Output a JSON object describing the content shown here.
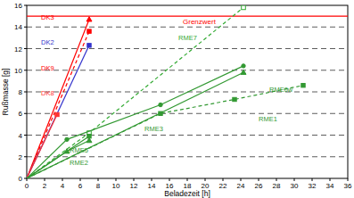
{
  "chart_data": {
    "type": "line",
    "x_label": "Beladezeit [h]",
    "y_label": "Rußmasse [g]",
    "xlim": [
      0,
      36
    ],
    "ylim": [
      0,
      16
    ],
    "xticks": [
      0,
      2,
      4,
      6,
      8,
      10,
      12,
      14,
      16,
      18,
      20,
      22,
      24,
      26,
      28,
      30,
      32,
      34,
      36
    ],
    "yticks": [
      0,
      2,
      4,
      6,
      8,
      10,
      12,
      14,
      16
    ],
    "grid": true,
    "reference_lines": [
      {
        "label": "Grenzwert",
        "value": 15,
        "color": "#ff0000"
      }
    ],
    "series": [
      {
        "name": "DK3",
        "color": "#ff0000",
        "x": [
          0,
          7
        ],
        "values": [
          0,
          14.7
        ],
        "marker": "triangle",
        "line_style": "solid"
      },
      {
        "name": "DK9",
        "color": "#ff0000",
        "x": [
          0,
          7
        ],
        "values": [
          0,
          13.6
        ],
        "marker": "square",
        "line_style": "dashed"
      },
      {
        "name": "DK2",
        "color": "#3333cc",
        "x": [
          0,
          7
        ],
        "values": [
          0,
          12.3
        ],
        "marker": "square",
        "line_style": "solid"
      },
      {
        "name": "DK8",
        "color": "#ff3333",
        "x": [
          0,
          3.4
        ],
        "values": [
          0,
          5.9
        ],
        "marker": "square",
        "line_style": "solid"
      },
      {
        "name": "RME7",
        "color": "#33aa33",
        "x": [
          0,
          7,
          24.3
        ],
        "values": [
          0,
          4.2,
          15.8
        ],
        "marker": "square-open",
        "line_style": "dashed"
      },
      {
        "name": "RME0w",
        "color": "#339933",
        "x": [
          0,
          24.3
        ],
        "values": [
          0,
          9.8
        ],
        "marker": "triangle",
        "line_style": "solid"
      },
      {
        "name": "RME3",
        "color": "#339933",
        "x": [
          0,
          4.5,
          15,
          24.3
        ],
        "values": [
          0,
          3.6,
          6.8,
          10.4
        ],
        "marker": "circle",
        "line_style": "solid"
      },
      {
        "name": "RME1",
        "color": "#339933",
        "x": [
          0,
          15,
          23.3,
          31
        ],
        "values": [
          0,
          6,
          7.3,
          8.6
        ],
        "marker": "square",
        "line_style": "dashed"
      },
      {
        "name": "RME5",
        "color": "#339933",
        "x": [
          0,
          7
        ],
        "values": [
          0,
          3.9
        ],
        "marker": "square",
        "line_style": "solid"
      },
      {
        "name": "RME2",
        "color": "#339933",
        "x": [
          0,
          4.5,
          7
        ],
        "values": [
          0,
          2.5,
          3.5
        ],
        "marker": "triangle",
        "line_style": "solid"
      }
    ]
  }
}
